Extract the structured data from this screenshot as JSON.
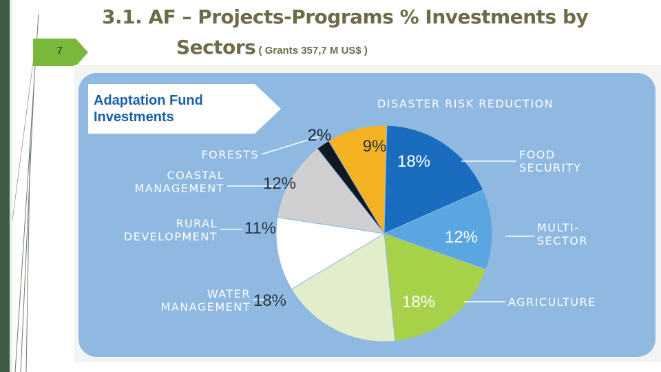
{
  "slide": {
    "page_number": "7",
    "title_line1": "3.1. AF – Projects-Programs % Investments  by",
    "title_line2_main": "Sectors",
    "title_line2_sub": " ( Grants 357,7 M US$ )"
  },
  "colors": {
    "panel_bg": "#8fb9e1",
    "banner_bg": "#ffffff",
    "text_dark": "#3a4450",
    "title_color": "#6f6a4a",
    "stripe_dark": "#3f5a45",
    "accent_green": "#7ab83c"
  },
  "chart_data": {
    "type": "pie",
    "title": "Adaptation Fund Investments",
    "unit": "%",
    "slices": [
      {
        "label": "DISASTER RISK REDUCTION",
        "value": 9,
        "value_label": "9%",
        "color": "#f5b323"
      },
      {
        "label": "FOOD SECURITY",
        "value": 18,
        "value_label": "18%",
        "color": "#1a6dbe"
      },
      {
        "label": "MULTI-SECTOR",
        "value": 12,
        "value_label": "12%",
        "color": "#5aa6e1"
      },
      {
        "label": "AGRICULTURE",
        "value": 18,
        "value_label": "18%",
        "color": "#a8d14a"
      },
      {
        "label": "WATER MANAGEMENT",
        "value": 18,
        "value_label": "18%",
        "color": "#e1edcb"
      },
      {
        "label": "RURAL DEVELOPMENT",
        "value": 11,
        "value_label": "11%",
        "color": "#ffffff"
      },
      {
        "label": "COASTAL MANAGEMENT",
        "value": 12,
        "value_label": "12%",
        "color": "#d0d0d2"
      },
      {
        "label": "FORESTS",
        "value": 2,
        "value_label": "2%",
        "color": "#101820"
      }
    ]
  }
}
